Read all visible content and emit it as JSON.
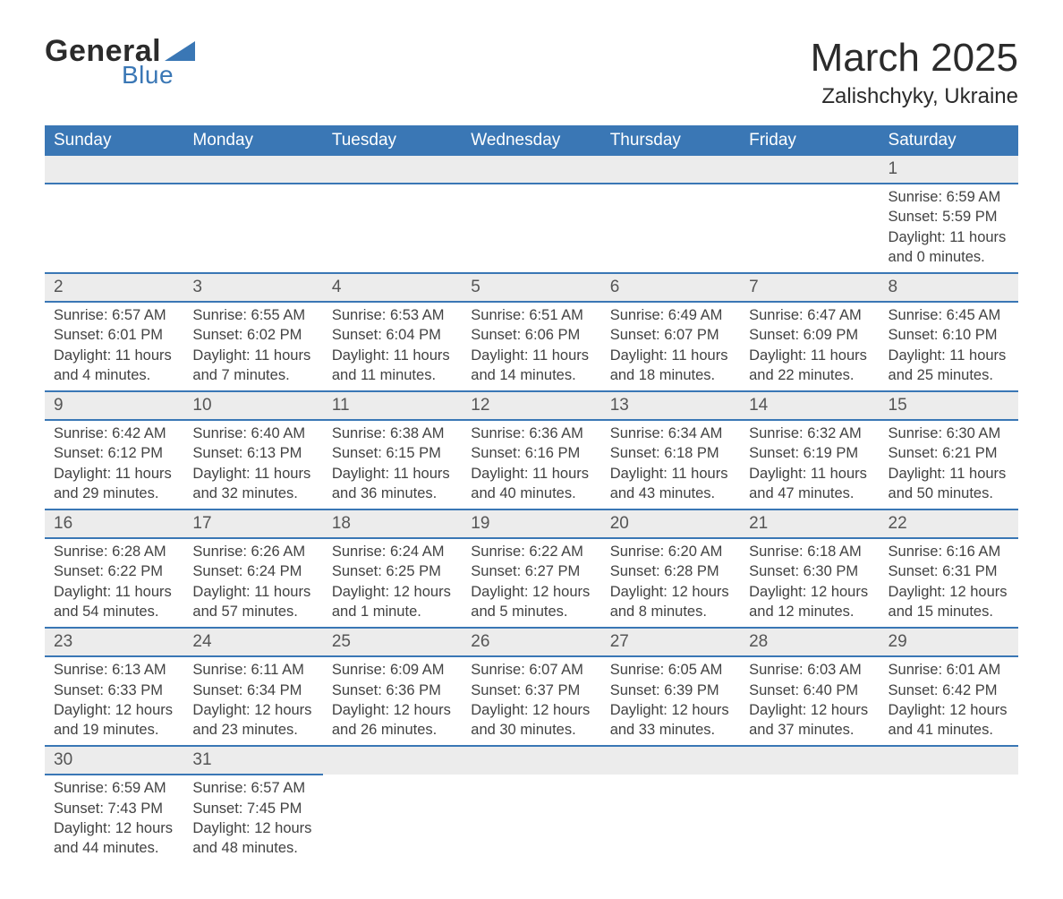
{
  "brand": {
    "word1": "General",
    "word2": "Blue",
    "accent_color": "#3a77b5"
  },
  "title": {
    "month": "March 2025",
    "location": "Zalishchyky, Ukraine"
  },
  "day_headers": [
    "Sunday",
    "Monday",
    "Tuesday",
    "Wednesday",
    "Thursday",
    "Friday",
    "Saturday"
  ],
  "colors": {
    "header_bg": "#3a77b5",
    "header_text": "#ffffff",
    "daynum_bg": "#ececec",
    "row_border": "#3a77b5",
    "text": "#3a3a3a"
  },
  "typography": {
    "body_fontsize": 16.5,
    "header_fontsize": 19,
    "title_fontsize": 44,
    "location_fontsize": 24
  },
  "weeks": [
    [
      null,
      null,
      null,
      null,
      null,
      null,
      {
        "n": "1",
        "sr": "Sunrise: 6:59 AM",
        "ss": "Sunset: 5:59 PM",
        "d1": "Daylight: 11 hours",
        "d2": "and 0 minutes."
      }
    ],
    [
      {
        "n": "2",
        "sr": "Sunrise: 6:57 AM",
        "ss": "Sunset: 6:01 PM",
        "d1": "Daylight: 11 hours",
        "d2": "and 4 minutes."
      },
      {
        "n": "3",
        "sr": "Sunrise: 6:55 AM",
        "ss": "Sunset: 6:02 PM",
        "d1": "Daylight: 11 hours",
        "d2": "and 7 minutes."
      },
      {
        "n": "4",
        "sr": "Sunrise: 6:53 AM",
        "ss": "Sunset: 6:04 PM",
        "d1": "Daylight: 11 hours",
        "d2": "and 11 minutes."
      },
      {
        "n": "5",
        "sr": "Sunrise: 6:51 AM",
        "ss": "Sunset: 6:06 PM",
        "d1": "Daylight: 11 hours",
        "d2": "and 14 minutes."
      },
      {
        "n": "6",
        "sr": "Sunrise: 6:49 AM",
        "ss": "Sunset: 6:07 PM",
        "d1": "Daylight: 11 hours",
        "d2": "and 18 minutes."
      },
      {
        "n": "7",
        "sr": "Sunrise: 6:47 AM",
        "ss": "Sunset: 6:09 PM",
        "d1": "Daylight: 11 hours",
        "d2": "and 22 minutes."
      },
      {
        "n": "8",
        "sr": "Sunrise: 6:45 AM",
        "ss": "Sunset: 6:10 PM",
        "d1": "Daylight: 11 hours",
        "d2": "and 25 minutes."
      }
    ],
    [
      {
        "n": "9",
        "sr": "Sunrise: 6:42 AM",
        "ss": "Sunset: 6:12 PM",
        "d1": "Daylight: 11 hours",
        "d2": "and 29 minutes."
      },
      {
        "n": "10",
        "sr": "Sunrise: 6:40 AM",
        "ss": "Sunset: 6:13 PM",
        "d1": "Daylight: 11 hours",
        "d2": "and 32 minutes."
      },
      {
        "n": "11",
        "sr": "Sunrise: 6:38 AM",
        "ss": "Sunset: 6:15 PM",
        "d1": "Daylight: 11 hours",
        "d2": "and 36 minutes."
      },
      {
        "n": "12",
        "sr": "Sunrise: 6:36 AM",
        "ss": "Sunset: 6:16 PM",
        "d1": "Daylight: 11 hours",
        "d2": "and 40 minutes."
      },
      {
        "n": "13",
        "sr": "Sunrise: 6:34 AM",
        "ss": "Sunset: 6:18 PM",
        "d1": "Daylight: 11 hours",
        "d2": "and 43 minutes."
      },
      {
        "n": "14",
        "sr": "Sunrise: 6:32 AM",
        "ss": "Sunset: 6:19 PM",
        "d1": "Daylight: 11 hours",
        "d2": "and 47 minutes."
      },
      {
        "n": "15",
        "sr": "Sunrise: 6:30 AM",
        "ss": "Sunset: 6:21 PM",
        "d1": "Daylight: 11 hours",
        "d2": "and 50 minutes."
      }
    ],
    [
      {
        "n": "16",
        "sr": "Sunrise: 6:28 AM",
        "ss": "Sunset: 6:22 PM",
        "d1": "Daylight: 11 hours",
        "d2": "and 54 minutes."
      },
      {
        "n": "17",
        "sr": "Sunrise: 6:26 AM",
        "ss": "Sunset: 6:24 PM",
        "d1": "Daylight: 11 hours",
        "d2": "and 57 minutes."
      },
      {
        "n": "18",
        "sr": "Sunrise: 6:24 AM",
        "ss": "Sunset: 6:25 PM",
        "d1": "Daylight: 12 hours",
        "d2": "and 1 minute."
      },
      {
        "n": "19",
        "sr": "Sunrise: 6:22 AM",
        "ss": "Sunset: 6:27 PM",
        "d1": "Daylight: 12 hours",
        "d2": "and 5 minutes."
      },
      {
        "n": "20",
        "sr": "Sunrise: 6:20 AM",
        "ss": "Sunset: 6:28 PM",
        "d1": "Daylight: 12 hours",
        "d2": "and 8 minutes."
      },
      {
        "n": "21",
        "sr": "Sunrise: 6:18 AM",
        "ss": "Sunset: 6:30 PM",
        "d1": "Daylight: 12 hours",
        "d2": "and 12 minutes."
      },
      {
        "n": "22",
        "sr": "Sunrise: 6:16 AM",
        "ss": "Sunset: 6:31 PM",
        "d1": "Daylight: 12 hours",
        "d2": "and 15 minutes."
      }
    ],
    [
      {
        "n": "23",
        "sr": "Sunrise: 6:13 AM",
        "ss": "Sunset: 6:33 PM",
        "d1": "Daylight: 12 hours",
        "d2": "and 19 minutes."
      },
      {
        "n": "24",
        "sr": "Sunrise: 6:11 AM",
        "ss": "Sunset: 6:34 PM",
        "d1": "Daylight: 12 hours",
        "d2": "and 23 minutes."
      },
      {
        "n": "25",
        "sr": "Sunrise: 6:09 AM",
        "ss": "Sunset: 6:36 PM",
        "d1": "Daylight: 12 hours",
        "d2": "and 26 minutes."
      },
      {
        "n": "26",
        "sr": "Sunrise: 6:07 AM",
        "ss": "Sunset: 6:37 PM",
        "d1": "Daylight: 12 hours",
        "d2": "and 30 minutes."
      },
      {
        "n": "27",
        "sr": "Sunrise: 6:05 AM",
        "ss": "Sunset: 6:39 PM",
        "d1": "Daylight: 12 hours",
        "d2": "and 33 minutes."
      },
      {
        "n": "28",
        "sr": "Sunrise: 6:03 AM",
        "ss": "Sunset: 6:40 PM",
        "d1": "Daylight: 12 hours",
        "d2": "and 37 minutes."
      },
      {
        "n": "29",
        "sr": "Sunrise: 6:01 AM",
        "ss": "Sunset: 6:42 PM",
        "d1": "Daylight: 12 hours",
        "d2": "and 41 minutes."
      }
    ],
    [
      {
        "n": "30",
        "sr": "Sunrise: 6:59 AM",
        "ss": "Sunset: 7:43 PM",
        "d1": "Daylight: 12 hours",
        "d2": "and 44 minutes."
      },
      {
        "n": "31",
        "sr": "Sunrise: 6:57 AM",
        "ss": "Sunset: 7:45 PM",
        "d1": "Daylight: 12 hours",
        "d2": "and 48 minutes."
      },
      null,
      null,
      null,
      null,
      null
    ]
  ]
}
